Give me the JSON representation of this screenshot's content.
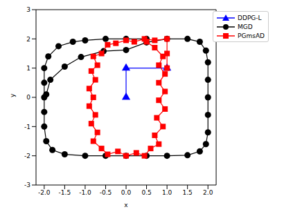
{
  "chart_data": {
    "type": "scatter",
    "x_label": "x",
    "y_label": "y",
    "xlim": [
      -2.2,
      2.2
    ],
    "ylim": [
      -3,
      3
    ],
    "xticks": [
      {
        "value": -2,
        "label": "-2.0"
      },
      {
        "value": -1.5,
        "label": "-1.5"
      },
      {
        "value": -1,
        "label": "-1.0"
      },
      {
        "value": -0.5,
        "label": "-0.5"
      },
      {
        "value": 0,
        "label": "0.0"
      },
      {
        "value": 0.5,
        "label": "0.5"
      },
      {
        "value": 1,
        "label": "1.0"
      },
      {
        "value": 1.5,
        "label": "1.5"
      },
      {
        "value": 2,
        "label": "2.0"
      }
    ],
    "yticks": [
      -3,
      -2,
      -1,
      0,
      1,
      2,
      3
    ],
    "grid": false,
    "legend": "upper right",
    "series": [
      {
        "name": "DDPG-L",
        "color": "#0000ff",
        "marker": "triangle",
        "line_style": "solid",
        "x": [
          0,
          0,
          1
        ],
        "y": [
          0,
          1,
          1
        ]
      },
      {
        "name": "MGD",
        "color": "#000000",
        "marker": "circle",
        "line_style": "solid",
        "x": [
          -1.95,
          -1.85,
          -1.5,
          -1.1,
          -0.55,
          0,
          0.5,
          1.0,
          1.5,
          1.8,
          1.95,
          2.0,
          2.0,
          2.0,
          2.0,
          2.0,
          1.95,
          1.8,
          1.5,
          1.0,
          0.5,
          0,
          -0.5,
          -1.0,
          -1.5,
          -1.8,
          -1.95,
          -2.0,
          -2.0,
          -2.0,
          -2.0,
          -2.0,
          -1.9,
          -1.65,
          -1.3,
          -1.0,
          -0.5,
          0,
          0.5
        ],
        "y": [
          0.1,
          0.6,
          1.05,
          1.38,
          1.58,
          1.62,
          1.88,
          2.0,
          2.0,
          1.9,
          1.6,
          1.2,
          0.6,
          0,
          -0.6,
          -1.2,
          -1.6,
          -1.85,
          -1.98,
          -2.0,
          -2.0,
          -2.0,
          -2.0,
          -2.0,
          -1.95,
          -1.8,
          -1.5,
          -1.0,
          -0.5,
          0,
          0.5,
          1.0,
          1.4,
          1.75,
          1.9,
          1.95,
          2.0,
          2.0,
          2.0
        ]
      },
      {
        "name": "PGmsAD",
        "color": "#ff0000",
        "marker": "square",
        "line_style": "solid",
        "x": [
          1.0,
          1.0,
          1.0,
          0.7,
          0.45,
          0.2,
          0,
          -0.25,
          -0.45,
          -0.6,
          -0.8,
          -0.7,
          -0.85,
          -0.75,
          -0.9,
          -0.8,
          -0.9,
          -0.75,
          -0.85,
          -0.7,
          -0.8,
          -0.6,
          -0.45,
          -0.2,
          0,
          0.25,
          0.45,
          0.6,
          0.8,
          0.7,
          0.9,
          0.75,
          0.95,
          0.8,
          0.95,
          0.8,
          0.95,
          0.8,
          0.9,
          0.7,
          0.5
        ],
        "y": [
          1.0,
          1.5,
          2.0,
          1.95,
          2.0,
          1.9,
          1.95,
          1.85,
          1.8,
          1.5,
          1.4,
          1.1,
          0.9,
          0.6,
          0.3,
          0.0,
          -0.3,
          -0.6,
          -0.9,
          -1.2,
          -1.5,
          -1.75,
          -1.95,
          -1.85,
          -2.0,
          -1.9,
          -2.0,
          -1.75,
          -1.6,
          -1.3,
          -1.0,
          -0.7,
          -0.4,
          -0.1,
          0.2,
          0.5,
          0.8,
          1.1,
          1.4,
          1.7,
          1.9
        ]
      }
    ]
  }
}
